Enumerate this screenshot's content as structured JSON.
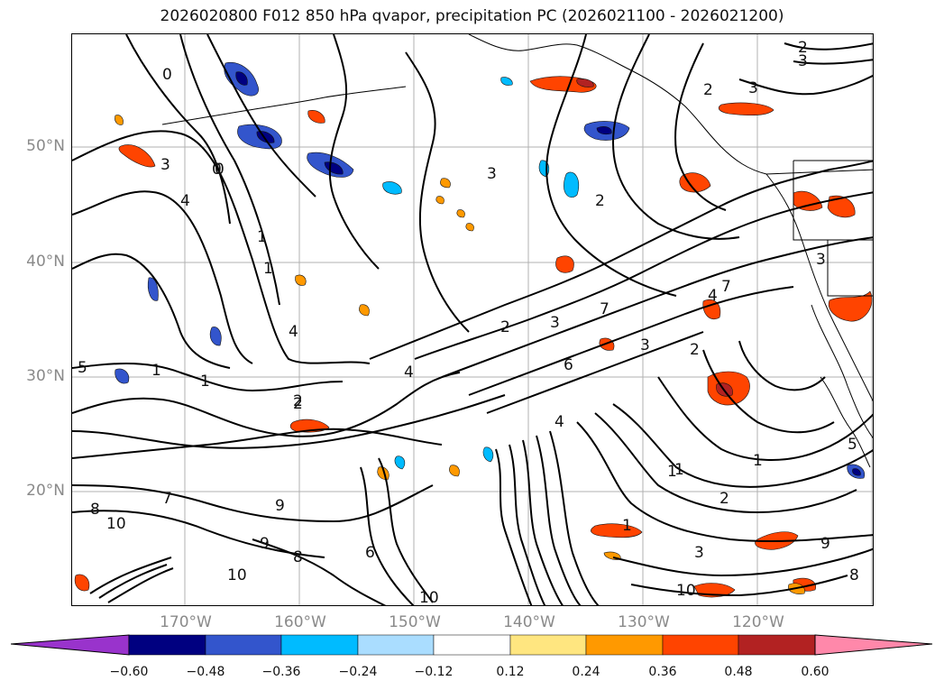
{
  "title": "2026020800 F012 850 hPa qvapor, precipitation PC (2026021100 - 2026021200)",
  "lat_labels": [
    "50°N",
    "40°N",
    "30°N",
    "20°N"
  ],
  "lon_labels": [
    "170°W",
    "160°W",
    "150°W",
    "140°W",
    "130°W",
    "120°W"
  ],
  "contour_labels": [
    "2",
    "3",
    "0",
    "3",
    "4",
    "1",
    "1",
    "0",
    "4",
    "5",
    "1",
    "1",
    "2",
    "3",
    "4",
    "2",
    "3",
    "6",
    "7",
    "3",
    "2",
    "2",
    "4",
    "7",
    "1",
    "8",
    "9",
    "9",
    "8",
    "10",
    "10",
    "6",
    "10",
    "7",
    "1",
    "2",
    "3",
    "1",
    "5",
    "1",
    "3",
    "2",
    "4",
    "2",
    "0",
    "3",
    "10",
    "9",
    "8"
  ],
  "colorbar": {
    "ticks": [
      "−0.60",
      "−0.48",
      "−0.36",
      "−0.24",
      "−0.12",
      "0.12",
      "0.24",
      "0.36",
      "0.48",
      "0.60"
    ],
    "colors": [
      "#9933cc",
      "#000080",
      "#3355cc",
      "#00bbff",
      "#aaddff",
      "#ffffff",
      "#ffe680",
      "#ff9900",
      "#ff4400",
      "#b22222",
      "#ff88aa"
    ]
  }
}
